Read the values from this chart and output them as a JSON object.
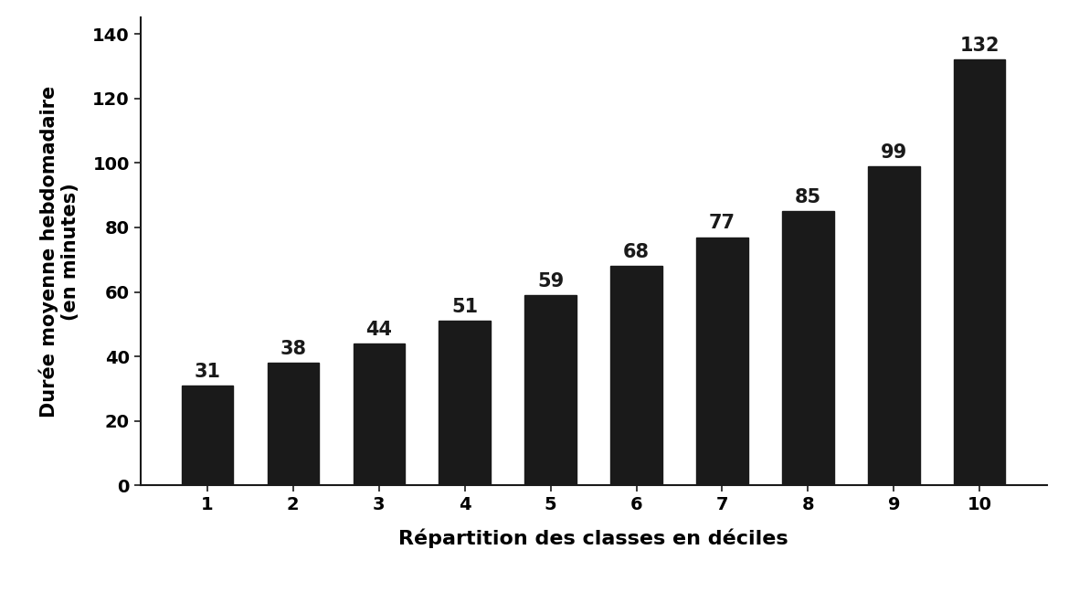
{
  "categories": [
    1,
    2,
    3,
    4,
    5,
    6,
    7,
    8,
    9,
    10
  ],
  "values": [
    31,
    38,
    44,
    51,
    59,
    68,
    77,
    85,
    99,
    132
  ],
  "bar_color": "#1a1a1a",
  "xlabel": "Répartition des classes en déciles",
  "ylabel_line1": "Durée moyenne hebdomadaire",
  "ylabel_line2": "(en minutes)",
  "ylim": [
    0,
    145
  ],
  "yticks": [
    0,
    20,
    40,
    60,
    80,
    100,
    120,
    140
  ],
  "xlabel_fontsize": 16,
  "ylabel_fontsize": 15,
  "tick_fontsize": 14,
  "label_fontsize": 15,
  "bar_width": 0.6,
  "background_color": "#ffffff"
}
